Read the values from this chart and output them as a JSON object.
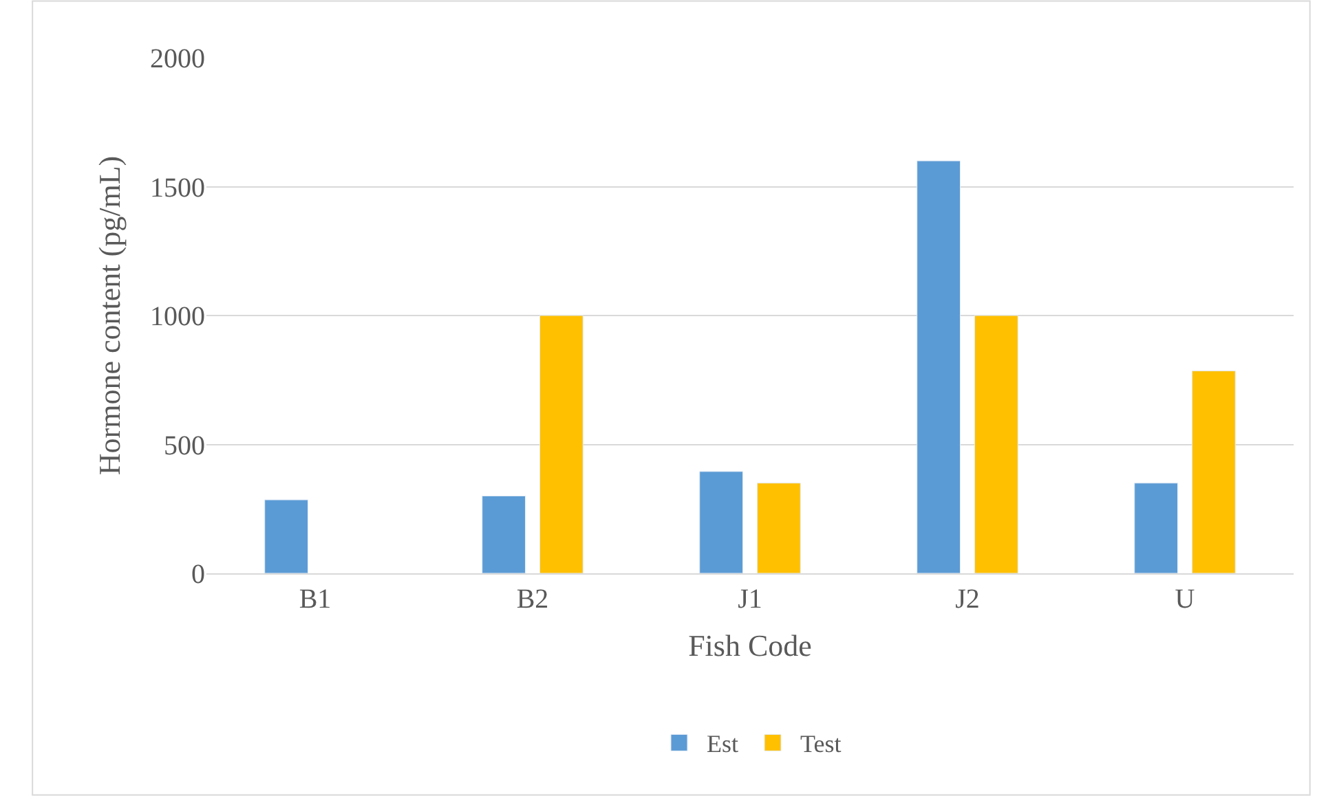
{
  "chart_data": {
    "type": "bar",
    "xlabel": "Fish Code",
    "ylabel": "Hormone content (pg/mL)",
    "categories": [
      "B1",
      "B2",
      "J1",
      "J2",
      "U"
    ],
    "series": [
      {
        "name": "Est",
        "color": "#5b9bd5",
        "values": [
          285,
          300,
          395,
          1600,
          350
        ]
      },
      {
        "name": "Test",
        "color": "#ffc000",
        "values": [
          null,
          1000,
          350,
          1000,
          785
        ]
      }
    ],
    "ylim": [
      0,
      2000
    ],
    "yticks": [
      0,
      500,
      1000,
      1500,
      2000
    ],
    "grid": "y",
    "legend": "bottom"
  }
}
